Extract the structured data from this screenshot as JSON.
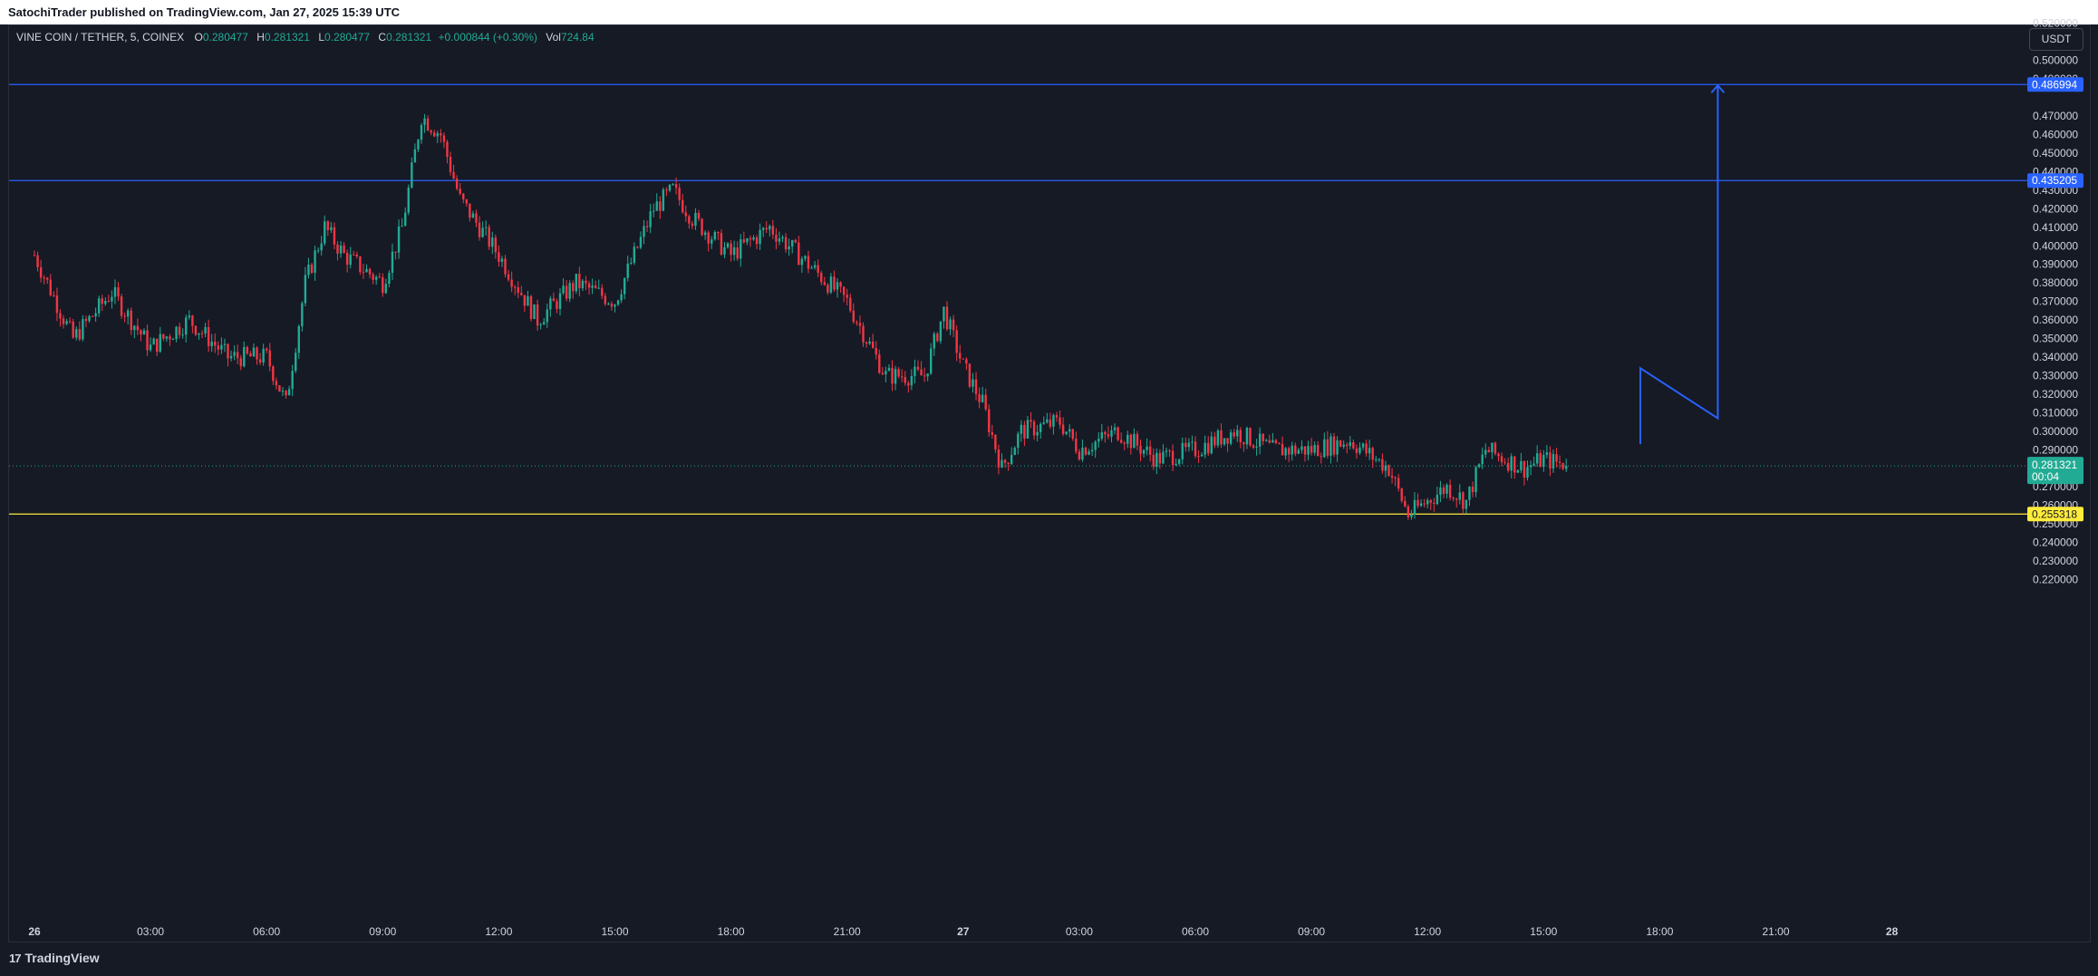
{
  "topbar": {
    "text": "SatochiTrader published on TradingView.com, Jan 27, 2025 15:39 UTC"
  },
  "legend": {
    "symbol": "VINE COIN / TETHER, 5, COINEX",
    "open_label": "O",
    "open": "0.280477",
    "high_label": "H",
    "high": "0.281321",
    "low_label": "L",
    "low": "0.280477",
    "close_label": "C",
    "close": "0.281321",
    "change": "+0.000844 (+0.30%)",
    "vol_label": "Vol",
    "vol": "724.84"
  },
  "currency_button": "USDT",
  "footer": {
    "logo_mark": "17",
    "brand": "TradingView"
  },
  "colors": {
    "up": "#22ab94",
    "down": "#f23645",
    "hline": "#2962ff",
    "support": "#ffeb3b",
    "background": "#161a25",
    "grid": "#1e222d",
    "text": "#d1d4dc"
  },
  "chart_data": {
    "type": "candlestick",
    "symbol": "VINE COIN / TETHER",
    "interval": "5",
    "exchange": "COINEX",
    "ylim": [
      0.215,
      0.525
    ],
    "y_ticks": [
      "0.520000",
      "0.510000",
      "0.500000",
      "0.490000",
      "0.470000",
      "0.460000",
      "0.450000",
      "0.440000",
      "0.430000",
      "0.420000",
      "0.410000",
      "0.400000",
      "0.390000",
      "0.380000",
      "0.370000",
      "0.360000",
      "0.350000",
      "0.340000",
      "0.330000",
      "0.320000",
      "0.310000",
      "0.300000",
      "0.290000",
      "0.270000",
      "0.260000",
      "0.250000",
      "0.240000",
      "0.230000",
      "0.220000"
    ],
    "x_ticks": [
      "26",
      "03:00",
      "06:00",
      "09:00",
      "12:00",
      "15:00",
      "18:00",
      "21:00",
      "27",
      "03:00",
      "06:00",
      "09:00",
      "12:00",
      "15:00",
      "18:00",
      "21:00",
      "28"
    ],
    "grid": false,
    "price_path": [
      [
        "00:00",
        0.395
      ],
      [
        "01:00",
        0.35
      ],
      [
        "02:00",
        0.375
      ],
      [
        "03:00",
        0.345
      ],
      [
        "04:00",
        0.36
      ],
      [
        "05:00",
        0.34
      ],
      [
        "06:00",
        0.34
      ],
      [
        "06:30",
        0.315
      ],
      [
        "07:00",
        0.38
      ],
      [
        "07:30",
        0.41
      ],
      [
        "08:00",
        0.395
      ],
      [
        "09:00",
        0.38
      ],
      [
        "09:30",
        0.41
      ],
      [
        "10:00",
        0.47
      ],
      [
        "10:30",
        0.46
      ],
      [
        "11:00",
        0.425
      ],
      [
        "12:00",
        0.395
      ],
      [
        "13:00",
        0.36
      ],
      [
        "14:00",
        0.38
      ],
      [
        "15:00",
        0.37
      ],
      [
        "16:00",
        0.42
      ],
      [
        "16:30",
        0.43
      ],
      [
        "17:00",
        0.415
      ],
      [
        "18:00",
        0.395
      ],
      [
        "19:00",
        0.41
      ],
      [
        "20:00",
        0.39
      ],
      [
        "21:00",
        0.37
      ],
      [
        "22:00",
        0.33
      ],
      [
        "23:00",
        0.33
      ],
      [
        "23:30",
        0.365
      ],
      [
        "00:00",
        0.335
      ],
      [
        "00:30",
        0.315
      ],
      [
        "01:00",
        0.28
      ],
      [
        "01:30",
        0.3
      ],
      [
        "02:30",
        0.305
      ],
      [
        "03:00",
        0.29
      ],
      [
        "04:00",
        0.3
      ],
      [
        "05:00",
        0.285
      ],
      [
        "06:00",
        0.29
      ],
      [
        "07:00",
        0.3
      ],
      [
        "08:00",
        0.29
      ],
      [
        "09:00",
        0.29
      ],
      [
        "10:00",
        0.295
      ],
      [
        "11:00",
        0.28
      ],
      [
        "11:30",
        0.255
      ],
      [
        "12:30",
        0.27
      ],
      [
        "13:00",
        0.262
      ],
      [
        "13:30",
        0.29
      ],
      [
        "14:00",
        0.285
      ],
      [
        "14:30",
        0.28
      ],
      [
        "15:00",
        0.285
      ],
      [
        "15:39",
        0.281321
      ]
    ],
    "horizontal_lines": [
      {
        "price": "0.486994",
        "value": 0.486994,
        "color": "#2962ff"
      },
      {
        "price": "0.435205",
        "value": 0.435205,
        "color": "#2962ff"
      },
      {
        "price": "0.255318",
        "value": 0.255318,
        "color": "#ffeb3b"
      }
    ],
    "last_price": {
      "price": "0.281321",
      "countdown": "00:04",
      "value": 0.281321
    },
    "projection_path": [
      {
        "time": "27 17:30",
        "price": 0.293
      },
      {
        "time": "27 17:30",
        "price": 0.334
      },
      {
        "time": "27 19:30",
        "price": 0.307
      },
      {
        "time": "27 19:30",
        "price": 0.487
      }
    ]
  }
}
